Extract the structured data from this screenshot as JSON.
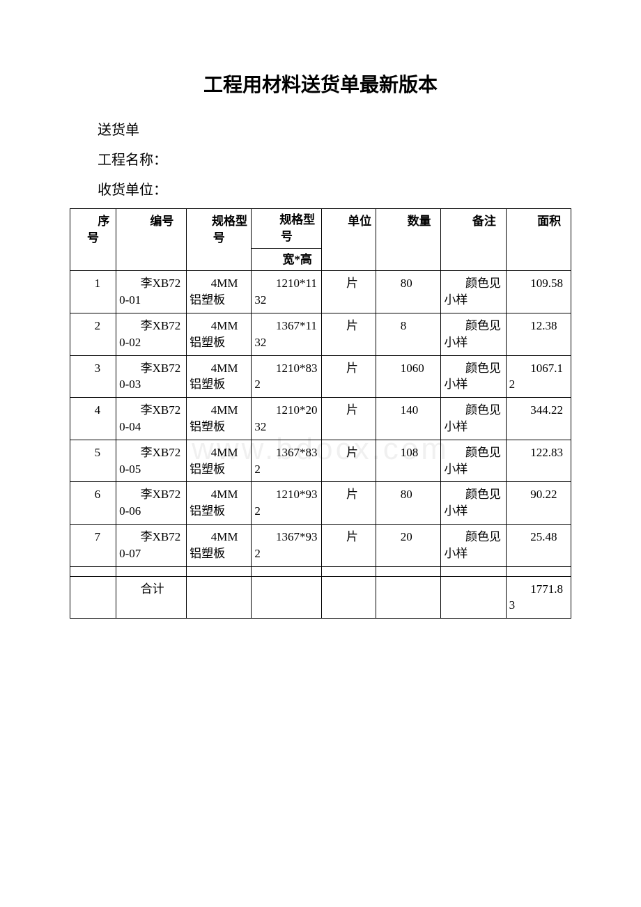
{
  "doc": {
    "title": "工程用材料送货单最新版本",
    "line1": "送货单",
    "line2": "工程名称：",
    "line3": "收货单位：",
    "watermark": "www.bdocx.com"
  },
  "table": {
    "headers": {
      "seq": "序号",
      "code": "编号",
      "spec": "规格型号",
      "dim_top": "规格型号",
      "dim_sub": "宽*高",
      "unit": "单位",
      "qty": "数量",
      "note": "备注",
      "area": "面积"
    },
    "rows": [
      {
        "seq": "1",
        "code": "李XB720-01",
        "spec": "4MM铝塑板",
        "dim": "1210*1132",
        "unit": "片",
        "qty": "80",
        "note": "颜色见小样",
        "area": "109.58"
      },
      {
        "seq": "2",
        "code": "李XB720-02",
        "spec": "4MM铝塑板",
        "dim": "1367*1132",
        "unit": "片",
        "qty": "8",
        "note": "颜色见小样",
        "area": "12.38"
      },
      {
        "seq": "3",
        "code": "李XB720-03",
        "spec": "4MM铝塑板",
        "dim": "1210*832",
        "unit": "片",
        "qty": "1060",
        "note": "颜色见小样",
        "area": "1067.12"
      },
      {
        "seq": "4",
        "code": "李XB720-04",
        "spec": "4MM铝塑板",
        "dim": "1210*2032",
        "unit": "片",
        "qty": "140",
        "note": "颜色见小样",
        "area": "344.22"
      },
      {
        "seq": "5",
        "code": "李XB720-05",
        "spec": "4MM铝塑板",
        "dim": "1367*832",
        "unit": "片",
        "qty": "108",
        "note": "颜色见小样",
        "area": "122.83"
      },
      {
        "seq": "6",
        "code": "李XB720-06",
        "spec": "4MM铝塑板",
        "dim": "1210*932",
        "unit": "片",
        "qty": "80",
        "note": "颜色见小样",
        "area": "90.22"
      },
      {
        "seq": "7",
        "code": "李XB720-07",
        "spec": "4MM铝塑板",
        "dim": "1367*932",
        "unit": "片",
        "qty": "20",
        "note": "颜色见小样",
        "area": "25.48"
      }
    ],
    "total_label": "合计",
    "total_area": "1771.83"
  },
  "style": {
    "background_color": "#ffffff",
    "text_color": "#000000",
    "border_color": "#000000",
    "title_fontsize": 28,
    "body_fontsize": 17,
    "meta_fontsize": 20,
    "font_family_title": "SimHei",
    "font_family_body": "SimSun",
    "watermark_color": "rgba(0,0,0,0.06)"
  }
}
